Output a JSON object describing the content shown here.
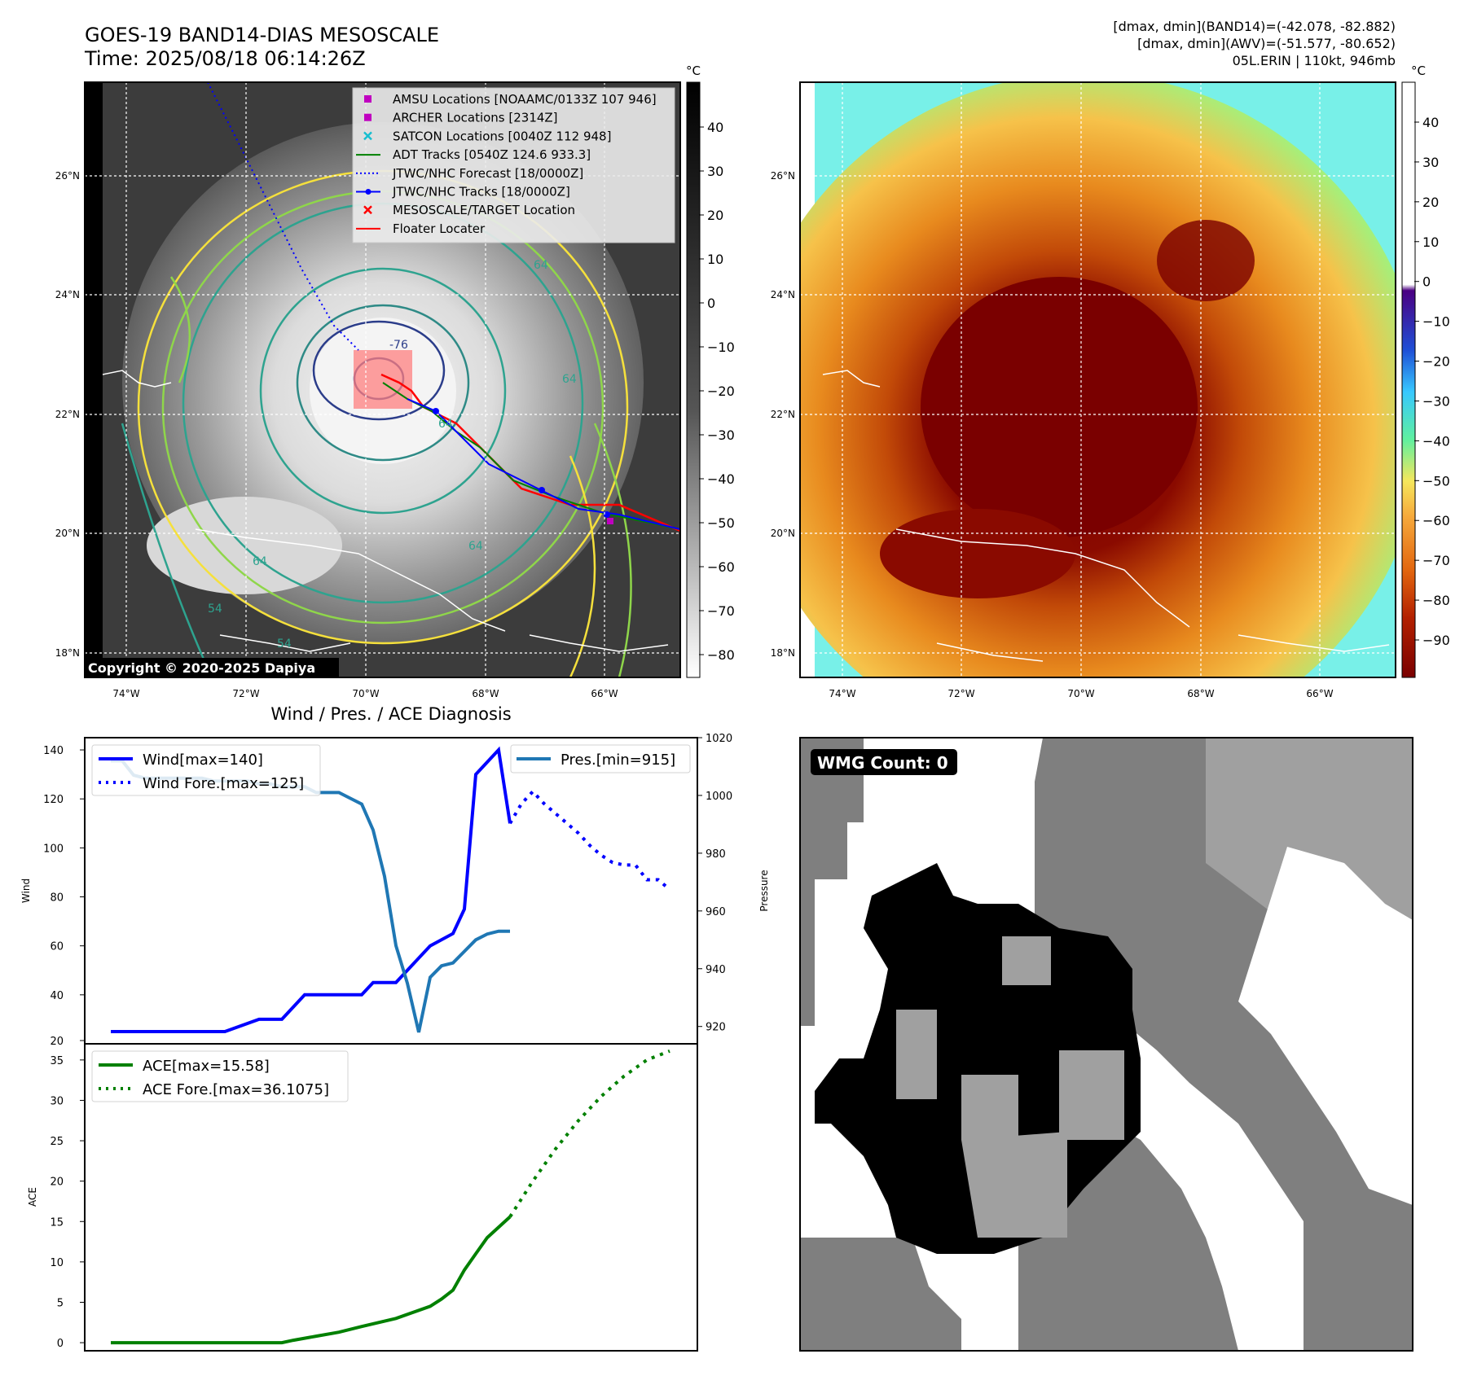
{
  "header": {
    "title_line1": "GOES-19 BAND14-DIAS MESOSCALE",
    "title_line2": "Time: 2025/08/18 06:14:26Z",
    "info_line1": "[dmax, dmin](BAND14)=(-42.078, -82.882)",
    "info_line2": "[dmax, dmin](AWV)=(-51.577, -80.652)",
    "info_line3": "05L.ERIN | 110kt, 946mb"
  },
  "maps": {
    "lat_labels": [
      "26°N",
      "24°N",
      "22°N",
      "20°N",
      "18°N"
    ],
    "lon_labels": [
      "74°W",
      "72°W",
      "70°W",
      "68°W",
      "66°W"
    ],
    "copyright": "Copyright © 2020-2025 Dapiya",
    "contour_labels": [
      "64",
      "64",
      "64",
      "54",
      "54",
      "64",
      "64",
      "-76",
      "64"
    ],
    "left_colorbar": {
      "unit": "°C",
      "ticks": [
        "40",
        "30",
        "20",
        "10",
        "0",
        "−10",
        "−20",
        "−30",
        "−40",
        "−50",
        "−60",
        "−70",
        "−80"
      ]
    },
    "right_colorbar": {
      "unit": "°C",
      "ticks": [
        "40",
        "30",
        "20",
        "10",
        "0",
        "−10",
        "−20",
        "−30",
        "−40",
        "−50",
        "−60",
        "−70",
        "−80",
        "−90"
      ]
    },
    "legend": [
      {
        "label": "AMSU Locations [NOAAMC/0133Z 107 946]",
        "color": "#c000c0",
        "marker": "square"
      },
      {
        "label": "ARCHER Locations [2314Z]",
        "color": "#c000c0",
        "marker": "square"
      },
      {
        "label": "SATCON Locations [0040Z 112 948]",
        "color": "#17becf",
        "marker": "x"
      },
      {
        "label": "ADT Tracks [0540Z 124.6 933.3]",
        "color": "#008000",
        "marker": "line"
      },
      {
        "label": "JTWC/NHC Forecast [18/0000Z]",
        "color": "#0000ff",
        "marker": "dotted"
      },
      {
        "label": "JTWC/NHC Tracks [18/0000Z]",
        "color": "#0000ff",
        "marker": "line-dot"
      },
      {
        "label": "MESOSCALE/TARGET Location",
        "color": "#ff0000",
        "marker": "x"
      },
      {
        "label": "Floater Locater",
        "color": "#ff0000",
        "marker": "line"
      }
    ]
  },
  "chart_data": [
    {
      "type": "line",
      "title": "Wind / Pres. / ACE Diagnosis",
      "ylabel": "Wind",
      "y2label": "Pressure",
      "ylim": [
        20,
        145
      ],
      "y2lim": [
        914,
        1020
      ],
      "yticks": [
        "20",
        "40",
        "60",
        "80",
        "100",
        "120",
        "140"
      ],
      "y2ticks": [
        "920",
        "940",
        "960",
        "980",
        "1000",
        "1020"
      ],
      "legend_left": [
        "Wind[max=140]",
        "Wind Fore.[max=125]"
      ],
      "legend_right": [
        "Pres.[min=915]"
      ],
      "series": [
        {
          "name": "Wind[max=140]",
          "axis": "left",
          "color": "#0000ff",
          "style": "solid",
          "x": [
            0,
            5,
            10,
            13,
            14,
            15,
            17,
            18,
            20,
            21,
            22,
            23,
            24,
            25,
            26,
            27,
            28,
            30,
            31,
            32,
            34,
            35
          ],
          "values": [
            25,
            25,
            25,
            30,
            30,
            30,
            40,
            40,
            40,
            40,
            40,
            45,
            45,
            45,
            50,
            55,
            60,
            65,
            75,
            130,
            140,
            110
          ]
        },
        {
          "name": "Wind Fore.[max=125]",
          "axis": "left",
          "color": "#0000ff",
          "style": "dotted",
          "x": [
            35,
            36,
            37,
            38,
            39,
            40,
            41,
            42,
            43,
            44,
            45,
            46,
            47,
            48,
            49
          ],
          "values": [
            110,
            118,
            123,
            118,
            114,
            110,
            106,
            101,
            97,
            94,
            93,
            93,
            87,
            87,
            83
          ]
        },
        {
          "name": "Pres.[min=915]",
          "axis": "right",
          "color": "#1f77b4",
          "style": "solid",
          "x": [
            0,
            1,
            2,
            3,
            4,
            5,
            6,
            7,
            8,
            9,
            10,
            11,
            12,
            13,
            14,
            15,
            16,
            17,
            18,
            19,
            20,
            21,
            22,
            23,
            24,
            25,
            26,
            27,
            28,
            29,
            30,
            31,
            32,
            33,
            34,
            35
          ],
          "values": [
            1012,
            1012,
            1007,
            1006,
            1006,
            1006,
            1006,
            1006,
            1006,
            1005,
            1005,
            1005,
            1005,
            1004,
            1004,
            1003,
            1003,
            1003,
            1001,
            1001,
            1001,
            999,
            997,
            988,
            972,
            948,
            935,
            918,
            937,
            941,
            942,
            946,
            950,
            952,
            953,
            953
          ]
        }
      ]
    },
    {
      "type": "line",
      "ylabel": "ACE",
      "ylim": [
        -1,
        37
      ],
      "yticks": [
        "0",
        "5",
        "10",
        "15",
        "20",
        "25",
        "30",
        "35"
      ],
      "legend": [
        "ACE[max=15.58]",
        "ACE Fore.[max=36.1075]"
      ],
      "series": [
        {
          "name": "ACE[max=15.58]",
          "color": "#008000",
          "style": "solid",
          "x": [
            0,
            5,
            10,
            15,
            16,
            18,
            20,
            22,
            25,
            28,
            29,
            30,
            31,
            32,
            33,
            35
          ],
          "values": [
            0,
            0,
            0,
            0,
            0.3,
            0.8,
            1.3,
            2.0,
            3.0,
            4.5,
            5.4,
            6.5,
            9,
            11,
            13,
            15.58
          ]
        },
        {
          "name": "ACE Fore.[max=36.1075]",
          "color": "#008000",
          "style": "dotted",
          "x": [
            35,
            37,
            39,
            41,
            43,
            45,
            47,
            49
          ],
          "values": [
            15.58,
            20,
            24,
            27.5,
            30.5,
            33,
            35,
            36.1075
          ]
        }
      ]
    }
  ],
  "wmg": {
    "label": "WMG Count: 0"
  }
}
